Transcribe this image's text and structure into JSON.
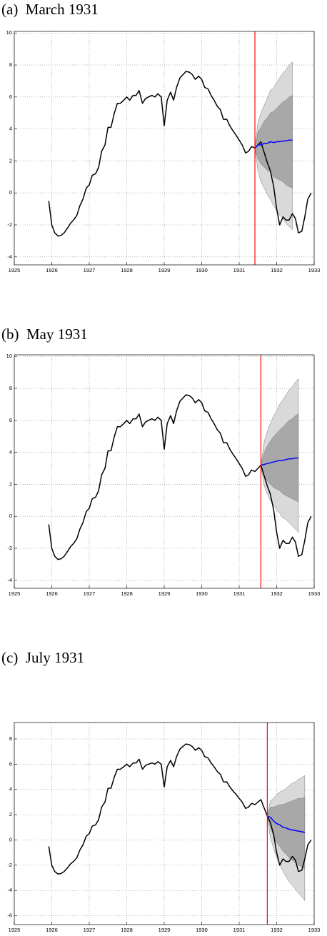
{
  "chart_data": [
    {
      "type": "line",
      "title": "(a)  March 1931",
      "xlim": [
        1925,
        1933
      ],
      "xticks": [
        1925,
        1926,
        1927,
        1928,
        1929,
        1930,
        1931,
        1932,
        1933
      ],
      "ylim": [
        -4.5,
        10.1
      ],
      "yticks": [
        -4,
        -2,
        0,
        2,
        4,
        6,
        8,
        10
      ],
      "grid": true,
      "vline": {
        "value": 1931.42,
        "color": "#ff0000"
      },
      "bands": [
        {
          "color": "#d9d9d9",
          "x": [
            1931.42,
            1931.5,
            1931.58,
            1931.67,
            1931.75,
            1931.83,
            1931.92,
            1932.0,
            1932.08,
            1932.17,
            1932.25,
            1932.33,
            1932.42
          ],
          "lower": [
            2.8,
            1.4,
            0.7,
            0.3,
            -0.1,
            -0.4,
            -0.8,
            -1.1,
            -1.4,
            -1.6,
            -1.9,
            -2.1,
            -2.3
          ],
          "upper": [
            2.8,
            4.4,
            5.0,
            5.5,
            5.9,
            6.4,
            6.6,
            6.9,
            7.2,
            7.5,
            7.7,
            8.0,
            8.2
          ]
        },
        {
          "color": "#a8a8a8",
          "x": [
            1931.42,
            1931.5,
            1931.58,
            1931.67,
            1931.75,
            1931.83,
            1931.92,
            1932.0,
            1932.08,
            1932.17,
            1932.25,
            1932.33,
            1932.42
          ],
          "lower": [
            2.8,
            2.1,
            1.8,
            1.6,
            1.4,
            1.3,
            1.0,
            0.9,
            0.8,
            0.7,
            0.5,
            0.4,
            0.3
          ],
          "upper": [
            2.8,
            3.8,
            4.1,
            4.5,
            4.7,
            5.0,
            5.1,
            5.3,
            5.5,
            5.7,
            5.8,
            6.0,
            6.1
          ]
        }
      ],
      "series": [
        {
          "color": "#000000",
          "x": [
            1925.92,
            1926.0,
            1926.08,
            1926.17,
            1926.25,
            1926.33,
            1926.42,
            1926.5,
            1926.58,
            1926.67,
            1926.75,
            1926.83,
            1926.92,
            1927.0,
            1927.08,
            1927.17,
            1927.25,
            1927.33,
            1927.42,
            1927.5,
            1927.58,
            1927.67,
            1927.75,
            1927.83,
            1927.92,
            1928.0,
            1928.08,
            1928.17,
            1928.25,
            1928.33,
            1928.42,
            1928.5,
            1928.58,
            1928.67,
            1928.75,
            1928.83,
            1928.92,
            1929.0,
            1929.08,
            1929.17,
            1929.25,
            1929.33,
            1929.42,
            1929.5,
            1929.58,
            1929.67,
            1929.75,
            1929.83,
            1929.92,
            1930.0,
            1930.08,
            1930.17,
            1930.25,
            1930.33,
            1930.42,
            1930.5,
            1930.58,
            1930.67,
            1930.75,
            1930.83,
            1930.92,
            1931.0,
            1931.08,
            1931.17,
            1931.25,
            1931.33,
            1931.42,
            1931.5,
            1931.58,
            1931.67,
            1931.75,
            1931.83,
            1931.92,
            1932.0,
            1932.08,
            1932.17,
            1932.25,
            1932.33,
            1932.42,
            1932.5,
            1932.58,
            1932.67,
            1932.75,
            1932.83,
            1932.92
          ],
          "values": [
            -0.5,
            -2.0,
            -2.5,
            -2.7,
            -2.65,
            -2.5,
            -2.2,
            -1.9,
            -1.7,
            -1.4,
            -0.8,
            -0.4,
            0.3,
            0.5,
            1.1,
            1.2,
            1.6,
            2.6,
            3.0,
            4.1,
            4.1,
            5.0,
            5.6,
            5.6,
            5.8,
            6.0,
            5.8,
            6.1,
            6.1,
            6.4,
            5.6,
            5.9,
            6.0,
            6.1,
            6.0,
            6.2,
            6.0,
            4.2,
            5.8,
            6.3,
            5.8,
            6.6,
            7.2,
            7.4,
            7.6,
            7.55,
            7.4,
            7.1,
            7.3,
            7.1,
            6.6,
            6.5,
            6.1,
            5.8,
            5.4,
            5.2,
            4.6,
            4.6,
            4.2,
            3.9,
            3.6,
            3.3,
            3.0,
            2.5,
            2.6,
            2.9,
            2.8,
            3.0,
            3.2,
            2.5,
            1.9,
            1.4,
            0.4,
            -1.0,
            -2.0,
            -1.5,
            -1.7,
            -1.7,
            -1.3,
            -1.6,
            -2.5,
            -2.4,
            -1.5,
            -0.4,
            0.0
          ]
        },
        {
          "color": "#0000ff",
          "x": [
            1931.42,
            1931.5,
            1931.58,
            1931.67,
            1931.75,
            1931.83,
            1931.92,
            1932.0,
            1932.08,
            1932.17,
            1932.25,
            1932.33,
            1932.42
          ],
          "values": [
            2.8,
            3.0,
            3.0,
            3.1,
            3.1,
            3.2,
            3.15,
            3.2,
            3.2,
            3.25,
            3.25,
            3.3,
            3.3
          ]
        }
      ]
    },
    {
      "type": "line",
      "title": "(b)  May 1931",
      "xlim": [
        1925,
        1933
      ],
      "xticks": [
        1925,
        1926,
        1927,
        1928,
        1929,
        1930,
        1931,
        1932,
        1933
      ],
      "ylim": [
        -4.5,
        10.1
      ],
      "yticks": [
        -4,
        -2,
        0,
        2,
        4,
        6,
        8,
        10
      ],
      "grid": true,
      "vline": {
        "value": 1931.58,
        "color": "#ff0000"
      },
      "bands": [
        {
          "color": "#d9d9d9",
          "x": [
            1931.58,
            1931.67,
            1931.75,
            1931.83,
            1931.92,
            1932.0,
            1932.08,
            1932.17,
            1932.25,
            1932.33,
            1932.42,
            1932.5,
            1932.58
          ],
          "lower": [
            3.2,
            1.9,
            1.4,
            1.0,
            0.7,
            0.4,
            0.2,
            -0.1,
            -0.2,
            -0.4,
            -0.6,
            -0.8,
            -1.0
          ],
          "upper": [
            3.2,
            4.7,
            5.3,
            5.8,
            6.3,
            6.6,
            7.0,
            7.3,
            7.6,
            7.9,
            8.1,
            8.4,
            8.6
          ]
        },
        {
          "color": "#a8a8a8",
          "x": [
            1931.58,
            1931.67,
            1931.75,
            1931.83,
            1931.92,
            1932.0,
            1932.08,
            1932.17,
            1932.25,
            1932.33,
            1932.42,
            1932.5,
            1932.58
          ],
          "lower": [
            3.2,
            2.5,
            2.2,
            2.0,
            1.8,
            1.7,
            1.6,
            1.4,
            1.3,
            1.2,
            1.1,
            1.0,
            0.9
          ],
          "upper": [
            3.2,
            4.0,
            4.4,
            4.7,
            5.0,
            5.2,
            5.4,
            5.6,
            5.8,
            6.0,
            6.1,
            6.3,
            6.4
          ]
        }
      ],
      "series": [
        {
          "color": "#000000",
          "x": [
            1925.92,
            1926.0,
            1926.08,
            1926.17,
            1926.25,
            1926.33,
            1926.42,
            1926.5,
            1926.58,
            1926.67,
            1926.75,
            1926.83,
            1926.92,
            1927.0,
            1927.08,
            1927.17,
            1927.25,
            1927.33,
            1927.42,
            1927.5,
            1927.58,
            1927.67,
            1927.75,
            1927.83,
            1927.92,
            1928.0,
            1928.08,
            1928.17,
            1928.25,
            1928.33,
            1928.42,
            1928.5,
            1928.58,
            1928.67,
            1928.75,
            1928.83,
            1928.92,
            1929.0,
            1929.08,
            1929.17,
            1929.25,
            1929.33,
            1929.42,
            1929.5,
            1929.58,
            1929.67,
            1929.75,
            1929.83,
            1929.92,
            1930.0,
            1930.08,
            1930.17,
            1930.25,
            1930.33,
            1930.42,
            1930.5,
            1930.58,
            1930.67,
            1930.75,
            1930.83,
            1930.92,
            1931.0,
            1931.08,
            1931.17,
            1931.25,
            1931.33,
            1931.42,
            1931.5,
            1931.58,
            1931.67,
            1931.75,
            1931.83,
            1931.92,
            1932.0,
            1932.08,
            1932.17,
            1932.25,
            1932.33,
            1932.42,
            1932.5,
            1932.58,
            1932.67,
            1932.75,
            1932.83,
            1932.92
          ],
          "values": [
            -0.5,
            -2.0,
            -2.5,
            -2.7,
            -2.65,
            -2.5,
            -2.2,
            -1.9,
            -1.7,
            -1.4,
            -0.8,
            -0.4,
            0.3,
            0.5,
            1.1,
            1.2,
            1.6,
            2.6,
            3.0,
            4.1,
            4.1,
            5.0,
            5.6,
            5.6,
            5.8,
            6.0,
            5.8,
            6.1,
            6.1,
            6.4,
            5.6,
            5.9,
            6.0,
            6.1,
            6.0,
            6.2,
            6.0,
            4.2,
            5.8,
            6.3,
            5.8,
            6.6,
            7.2,
            7.4,
            7.6,
            7.55,
            7.4,
            7.1,
            7.3,
            7.1,
            6.6,
            6.5,
            6.1,
            5.8,
            5.4,
            5.2,
            4.6,
            4.6,
            4.2,
            3.9,
            3.6,
            3.3,
            3.0,
            2.5,
            2.6,
            2.9,
            2.8,
            3.0,
            3.2,
            2.5,
            1.9,
            1.4,
            0.4,
            -1.0,
            -2.0,
            -1.5,
            -1.7,
            -1.7,
            -1.3,
            -1.6,
            -2.5,
            -2.4,
            -1.5,
            -0.4,
            0.0
          ]
        },
        {
          "color": "#0000ff",
          "x": [
            1931.58,
            1931.67,
            1931.75,
            1931.83,
            1931.92,
            1932.0,
            1932.08,
            1932.17,
            1932.25,
            1932.33,
            1932.42,
            1932.5,
            1932.58
          ],
          "values": [
            3.2,
            3.25,
            3.3,
            3.35,
            3.4,
            3.45,
            3.5,
            3.5,
            3.55,
            3.6,
            3.6,
            3.65,
            3.65
          ]
        }
      ]
    },
    {
      "type": "line",
      "title": "(c)  July 1931",
      "xlim": [
        1925,
        1933
      ],
      "xticks": [
        1925,
        1926,
        1927,
        1928,
        1929,
        1930,
        1931,
        1932,
        1933
      ],
      "ylim": [
        -6.7,
        9.3
      ],
      "yticks": [
        -6,
        -4,
        -2,
        0,
        2,
        4,
        6,
        8
      ],
      "grid": true,
      "vline": {
        "value": 1931.75,
        "color": "#ff0000"
      },
      "bands": [
        {
          "color": "#d9d9d9",
          "x": [
            1931.75,
            1931.83,
            1931.92,
            1932.0,
            1932.08,
            1932.17,
            1932.25,
            1932.33,
            1932.42,
            1932.5,
            1932.58,
            1932.67,
            1932.75
          ],
          "lower": [
            1.9,
            0.2,
            -0.7,
            -1.4,
            -1.9,
            -2.5,
            -2.9,
            -3.3,
            -3.6,
            -3.9,
            -4.2,
            -4.5,
            -4.8
          ],
          "upper": [
            1.9,
            3.1,
            3.3,
            3.6,
            3.8,
            3.9,
            4.1,
            4.3,
            4.5,
            4.6,
            4.8,
            4.95,
            5.1
          ]
        },
        {
          "color": "#a8a8a8",
          "x": [
            1931.75,
            1931.83,
            1931.92,
            1932.0,
            1932.08,
            1932.17,
            1932.25,
            1932.33,
            1932.42,
            1932.5,
            1932.58,
            1932.67,
            1932.75
          ],
          "lower": [
            1.9,
            1.0,
            0.3,
            -0.2,
            -0.5,
            -0.9,
            -1.1,
            -1.4,
            -1.6,
            -1.8,
            -2.0,
            -2.1,
            -2.3
          ],
          "upper": [
            1.9,
            2.6,
            2.6,
            2.7,
            2.8,
            2.8,
            2.9,
            3.0,
            3.1,
            3.2,
            3.3,
            3.3,
            3.4
          ]
        }
      ],
      "series": [
        {
          "color": "#000000",
          "x": [
            1925.92,
            1926.0,
            1926.08,
            1926.17,
            1926.25,
            1926.33,
            1926.42,
            1926.5,
            1926.58,
            1926.67,
            1926.75,
            1926.83,
            1926.92,
            1927.0,
            1927.08,
            1927.17,
            1927.25,
            1927.33,
            1927.42,
            1927.5,
            1927.58,
            1927.67,
            1927.75,
            1927.83,
            1927.92,
            1928.0,
            1928.08,
            1928.17,
            1928.25,
            1928.33,
            1928.42,
            1928.5,
            1928.58,
            1928.67,
            1928.75,
            1928.83,
            1928.92,
            1929.0,
            1929.08,
            1929.17,
            1929.25,
            1929.33,
            1929.42,
            1929.5,
            1929.58,
            1929.67,
            1929.75,
            1929.83,
            1929.92,
            1930.0,
            1930.08,
            1930.17,
            1930.25,
            1930.33,
            1930.42,
            1930.5,
            1930.58,
            1930.67,
            1930.75,
            1930.83,
            1930.92,
            1931.0,
            1931.08,
            1931.17,
            1931.25,
            1931.33,
            1931.42,
            1931.5,
            1931.58,
            1931.67,
            1931.75,
            1931.83,
            1931.92,
            1932.0,
            1932.08,
            1932.17,
            1932.25,
            1932.33,
            1932.42,
            1932.5,
            1932.58,
            1932.67,
            1932.75,
            1932.83,
            1932.92
          ],
          "values": [
            -0.5,
            -2.0,
            -2.5,
            -2.7,
            -2.65,
            -2.5,
            -2.2,
            -1.9,
            -1.7,
            -1.4,
            -0.8,
            -0.4,
            0.3,
            0.5,
            1.1,
            1.2,
            1.6,
            2.6,
            3.0,
            4.1,
            4.1,
            5.0,
            5.6,
            5.6,
            5.8,
            6.0,
            5.8,
            6.1,
            6.1,
            6.4,
            5.6,
            5.9,
            6.0,
            6.1,
            6.0,
            6.2,
            6.0,
            4.2,
            5.8,
            6.3,
            5.8,
            6.6,
            7.2,
            7.4,
            7.6,
            7.55,
            7.4,
            7.1,
            7.3,
            7.1,
            6.6,
            6.5,
            6.1,
            5.8,
            5.4,
            5.2,
            4.6,
            4.6,
            4.2,
            3.9,
            3.6,
            3.3,
            3.0,
            2.5,
            2.6,
            2.9,
            2.8,
            3.0,
            3.2,
            2.5,
            1.9,
            1.4,
            0.4,
            -1.0,
            -2.0,
            -1.5,
            -1.7,
            -1.7,
            -1.3,
            -1.6,
            -2.5,
            -2.4,
            -1.5,
            -0.4,
            0.0
          ]
        },
        {
          "color": "#0000ff",
          "x": [
            1931.75,
            1931.83,
            1931.92,
            1932.0,
            1932.08,
            1932.17,
            1932.25,
            1932.33,
            1932.42,
            1932.5,
            1932.58,
            1932.67,
            1932.75
          ],
          "values": [
            1.9,
            1.8,
            1.5,
            1.3,
            1.2,
            1.0,
            0.95,
            0.85,
            0.8,
            0.75,
            0.7,
            0.65,
            0.6
          ]
        }
      ]
    }
  ]
}
